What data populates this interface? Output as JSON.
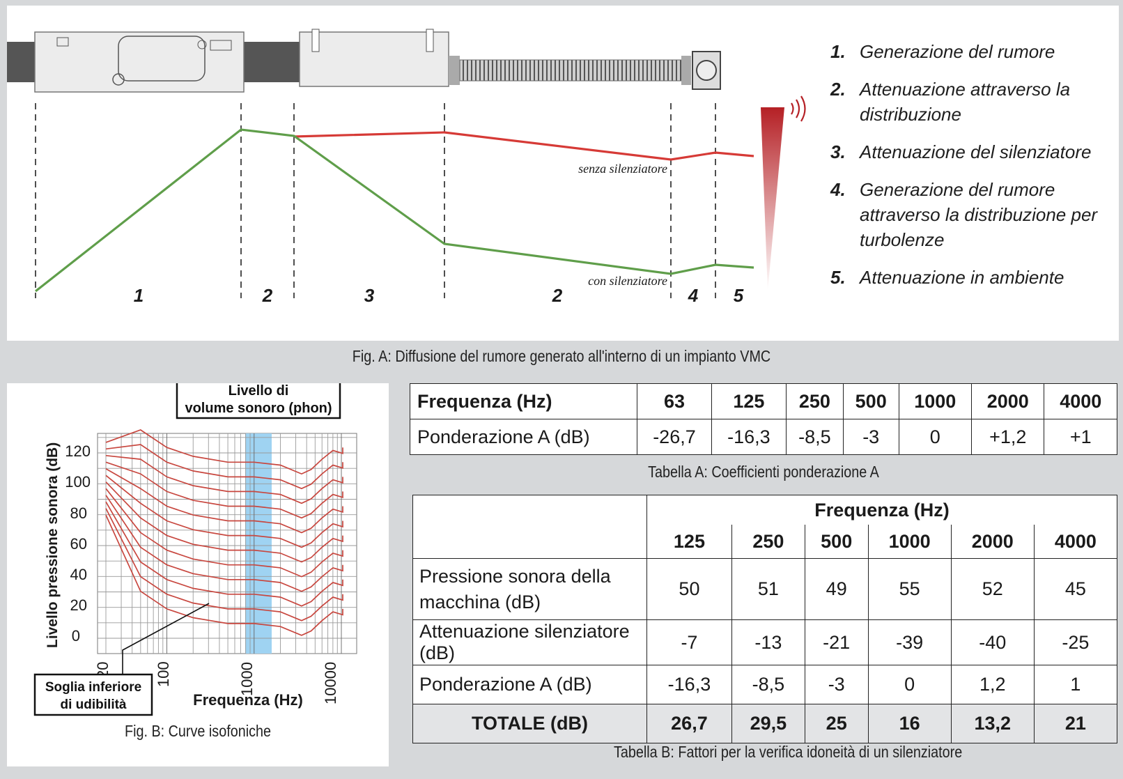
{
  "fig_a": {
    "caption": "Fig. A: Diffusione del rumore generato all'interno di un impianto VMC",
    "segment_labels": [
      "1",
      "2",
      "3",
      "2",
      "4",
      "5"
    ],
    "curve_red_label": "senza silenziatore",
    "curve_green_label": "con silenziatore",
    "legend": [
      {
        "num": "1.",
        "text": "Generazione del rumore"
      },
      {
        "num": "2.",
        "text": "Attenuazione attraverso la distribuzione"
      },
      {
        "num": "3.",
        "text": "Attenuazione del silenziatore"
      },
      {
        "num": "4.",
        "text": "Generazione del rumore attraverso la distribuzione per turbolenze"
      },
      {
        "num": "5.",
        "text": "Attenuazione in ambiente"
      }
    ]
  },
  "fig_b": {
    "caption": "Fig. B: Curve isofoniche",
    "phon_box_line1": "Livello di",
    "phon_box_line2": "volume sonoro (phon)",
    "threshold_line1": "Soglia inferiore",
    "threshold_line2": "di udibilità",
    "y_axis_label": "Livello pressione sonora (dB)",
    "x_axis_label": "Frequenza (Hz)",
    "y_ticks": [
      "120",
      "100",
      "80",
      "60",
      "40",
      "20",
      "0"
    ],
    "x_ticks": [
      "20",
      "100",
      "1000",
      "10000"
    ]
  },
  "table_a": {
    "caption": "Tabella A: Coefficienti ponderazione A",
    "header_label": "Frequenza (Hz)",
    "frequencies": [
      "63",
      "125",
      "250",
      "500",
      "1000",
      "2000",
      "4000"
    ],
    "row_label": "Ponderazione A (dB)",
    "values": [
      "-26,7",
      "-16,3",
      "-8,5",
      "-3",
      "0",
      "+1,2",
      "+1"
    ]
  },
  "table_b": {
    "caption": "Tabella B: Fattori per la verifica idoneità di un silenziatore",
    "header_label": "Frequenza (Hz)",
    "frequencies": [
      "125",
      "250",
      "500",
      "1000",
      "2000",
      "4000"
    ],
    "rows": [
      {
        "label": "Pressione sonora della macchina (dB)",
        "values": [
          "50",
          "51",
          "49",
          "55",
          "52",
          "45"
        ]
      },
      {
        "label": "Attenuazione silenziatore (dB)",
        "values": [
          "-7",
          "-13",
          "-21",
          "-39",
          "-40",
          "-25"
        ]
      },
      {
        "label": "Ponderazione A (dB)",
        "values": [
          "-16,3",
          "-8,5",
          "-3",
          "0",
          "1,2",
          "1"
        ]
      }
    ],
    "total": {
      "label": "TOTALE (dB)",
      "values": [
        "26,7",
        "29,5",
        "25",
        "16",
        "13,2",
        "21"
      ]
    }
  },
  "colors": {
    "red_curve": "#d63a36",
    "green_curve": "#5f9e4a",
    "band": "#9fd3f2",
    "background": "#d6d8da"
  }
}
